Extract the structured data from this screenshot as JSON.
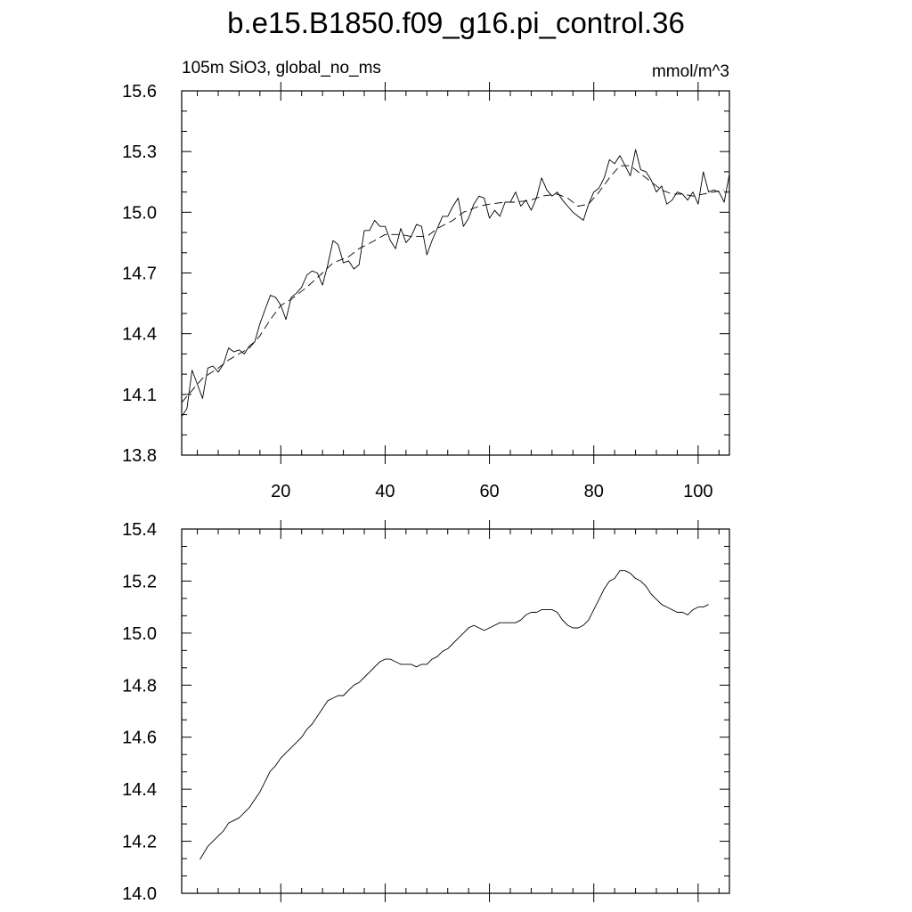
{
  "page": {
    "title": "b.e15.B1850.f09_g16.pi_control.36"
  },
  "chart_data": [
    {
      "type": "line",
      "subtitle_left": "105m SiO3, global_no_ms",
      "subtitle_right": "mmol/m^3",
      "xlim": [
        1,
        106
      ],
      "ylim": [
        13.8,
        15.6
      ],
      "x_ticks": [
        20,
        40,
        60,
        80,
        100
      ],
      "x_tick_labels": [
        "20",
        "40",
        "60",
        "80",
        "100"
      ],
      "y_ticks": [
        13.8,
        14.1,
        14.4,
        14.7,
        15.0,
        15.3,
        15.6
      ],
      "y_tick_labels": [
        "13.8",
        "14.1",
        "14.4",
        "14.7",
        "15.0",
        "15.3",
        "15.6"
      ],
      "grid": false,
      "series": [
        {
          "style": "solid",
          "x": [
            1,
            2,
            3,
            4,
            5,
            6,
            7,
            8,
            9,
            10,
            11,
            12,
            13,
            14,
            15,
            16,
            17,
            18,
            19,
            20,
            21,
            22,
            23,
            24,
            25,
            26,
            27,
            28,
            29,
            30,
            31,
            32,
            33,
            34,
            35,
            36,
            37,
            38,
            39,
            40,
            41,
            42,
            43,
            44,
            45,
            46,
            47,
            48,
            49,
            50,
            51,
            52,
            53,
            54,
            55,
            56,
            57,
            58,
            59,
            60,
            61,
            62,
            63,
            64,
            65,
            66,
            67,
            68,
            69,
            70,
            71,
            72,
            73,
            74,
            75,
            76,
            77,
            78,
            79,
            80,
            81,
            82,
            83,
            84,
            85,
            86,
            87,
            88,
            89,
            90,
            91,
            92,
            93,
            94,
            95,
            96,
            97,
            98,
            99,
            100,
            101,
            102,
            103,
            104,
            105,
            106
          ],
          "y": [
            13.99,
            14.03,
            14.22,
            14.15,
            14.08,
            14.23,
            14.24,
            14.21,
            14.25,
            14.33,
            14.31,
            14.32,
            14.3,
            14.34,
            14.36,
            14.45,
            14.52,
            14.59,
            14.58,
            14.54,
            14.47,
            14.58,
            14.6,
            14.63,
            14.69,
            14.71,
            14.7,
            14.64,
            14.74,
            14.86,
            14.84,
            14.75,
            14.76,
            14.72,
            14.74,
            14.91,
            14.91,
            14.96,
            14.93,
            14.93,
            14.86,
            14.82,
            14.92,
            14.85,
            14.88,
            14.94,
            14.93,
            14.79,
            14.86,
            14.92,
            14.98,
            14.98,
            15.03,
            15.07,
            14.93,
            14.97,
            15.04,
            15.08,
            15.07,
            14.97,
            15.01,
            14.98,
            15.05,
            15.05,
            15.1,
            15.03,
            15.06,
            15.01,
            15.07,
            15.17,
            15.11,
            15.08,
            15.1,
            15.06,
            15.03,
            15.0,
            14.98,
            14.96,
            15.04,
            15.1,
            15.12,
            15.17,
            15.26,
            15.24,
            15.28,
            15.23,
            15.18,
            15.31,
            15.21,
            15.2,
            15.16,
            15.1,
            15.13,
            15.04,
            15.06,
            15.1,
            15.09,
            15.06,
            15.1,
            15.04,
            15.2,
            15.1,
            15.11,
            15.1,
            15.05,
            15.19
          ]
        },
        {
          "style": "dashed",
          "x": [
            1,
            3,
            5,
            8,
            10,
            12,
            14,
            16,
            18,
            20,
            22,
            25,
            28,
            30,
            33,
            35,
            38,
            40,
            43,
            45,
            48,
            50,
            53,
            55,
            58,
            60,
            63,
            65,
            68,
            70,
            73,
            75,
            77,
            79,
            81,
            83,
            85,
            87,
            89,
            91,
            93,
            95,
            97,
            99,
            101,
            103,
            105
          ],
          "y": [
            14.06,
            14.12,
            14.18,
            14.23,
            14.27,
            14.3,
            14.33,
            14.39,
            14.47,
            14.54,
            14.57,
            14.63,
            14.7,
            14.75,
            14.78,
            14.82,
            14.86,
            14.89,
            14.89,
            14.88,
            14.88,
            14.92,
            14.96,
            15.0,
            15.03,
            15.04,
            15.05,
            15.05,
            15.06,
            15.08,
            15.09,
            15.07,
            15.03,
            15.04,
            15.1,
            15.17,
            15.23,
            15.23,
            15.19,
            15.15,
            15.11,
            15.09,
            15.09,
            15.08,
            15.09,
            15.1,
            15.11
          ]
        }
      ]
    },
    {
      "type": "line",
      "xlim": [
        1,
        106
      ],
      "ylim": [
        14.0,
        15.4
      ],
      "x_ticks": [
        20,
        40,
        60,
        80,
        100
      ],
      "y_ticks": [
        14.0,
        14.2,
        14.4,
        14.6,
        14.8,
        15.0,
        15.2,
        15.4
      ],
      "y_tick_labels": [
        "14.0",
        "14.2",
        "14.4",
        "14.6",
        "14.8",
        "15.0",
        "15.2",
        "15.4"
      ],
      "grid": false,
      "series": [
        {
          "style": "solid",
          "x": [
            4.5,
            6,
            7,
            8,
            9,
            10,
            11,
            12,
            13,
            14,
            15,
            16,
            17,
            18,
            19,
            20,
            21,
            22,
            23,
            24,
            25,
            26,
            27,
            28,
            29,
            30,
            31,
            32,
            33,
            34,
            35,
            36,
            37,
            38,
            39,
            40,
            41,
            42,
            43,
            44,
            45,
            46,
            47,
            48,
            49,
            50,
            51,
            52,
            53,
            54,
            55,
            56,
            57,
            58,
            59,
            60,
            61,
            62,
            63,
            64,
            65,
            66,
            67,
            68,
            69,
            70,
            71,
            72,
            73,
            74,
            75,
            76,
            77,
            78,
            79,
            80,
            81,
            82,
            83,
            84,
            85,
            86,
            87,
            88,
            89,
            90,
            91,
            92,
            93,
            94,
            95,
            96,
            97,
            98,
            99,
            100,
            101,
            102
          ],
          "y": [
            14.13,
            14.18,
            14.2,
            14.22,
            14.24,
            14.27,
            14.28,
            14.29,
            14.31,
            14.33,
            14.36,
            14.39,
            14.43,
            14.47,
            14.49,
            14.52,
            14.54,
            14.56,
            14.58,
            14.6,
            14.63,
            14.65,
            14.68,
            14.71,
            14.74,
            14.75,
            14.76,
            14.76,
            14.78,
            14.8,
            14.81,
            14.83,
            14.85,
            14.87,
            14.89,
            14.9,
            14.9,
            14.89,
            14.88,
            14.88,
            14.88,
            14.87,
            14.88,
            14.88,
            14.9,
            14.91,
            14.93,
            14.94,
            14.96,
            14.98,
            15.0,
            15.02,
            15.03,
            15.02,
            15.01,
            15.02,
            15.03,
            15.04,
            15.04,
            15.04,
            15.04,
            15.05,
            15.07,
            15.08,
            15.08,
            15.09,
            15.09,
            15.09,
            15.08,
            15.05,
            15.03,
            15.02,
            15.02,
            15.03,
            15.05,
            15.09,
            15.13,
            15.17,
            15.2,
            15.21,
            15.24,
            15.24,
            15.23,
            15.21,
            15.2,
            15.18,
            15.15,
            15.13,
            15.11,
            15.1,
            15.09,
            15.08,
            15.08,
            15.07,
            15.09,
            15.1,
            15.1,
            15.11
          ]
        }
      ]
    }
  ]
}
